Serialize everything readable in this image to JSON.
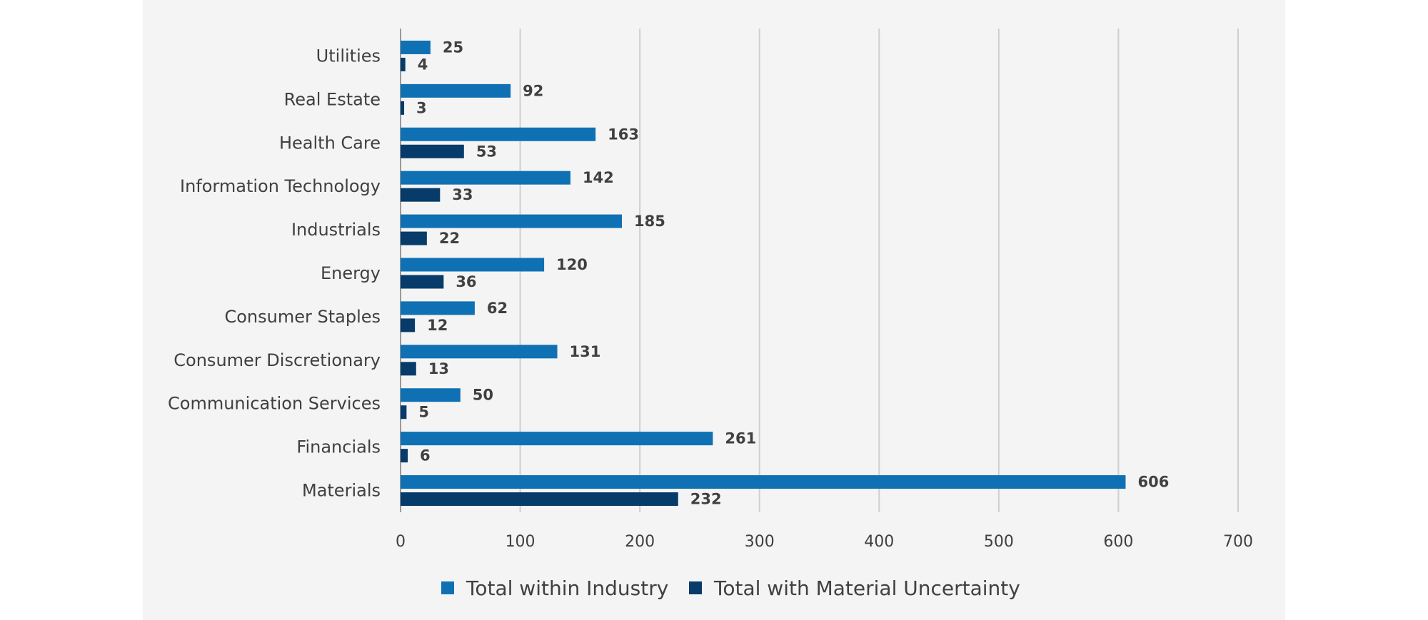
{
  "chart_data": {
    "type": "bar",
    "orientation": "horizontal",
    "categories": [
      "Utilities",
      "Real Estate",
      "Health Care",
      "Information Technology",
      "Industrials",
      "Energy",
      "Consumer Staples",
      "Consumer Discretionary",
      "Communication Services",
      "Financials",
      "Materials"
    ],
    "series": [
      {
        "name": "Total within Industry",
        "color": "#0f71b3",
        "values": [
          25,
          92,
          163,
          142,
          185,
          120,
          62,
          131,
          50,
          261,
          606
        ]
      },
      {
        "name": "Total with Material Uncertainty",
        "color": "#063b6a",
        "values": [
          4,
          3,
          53,
          33,
          22,
          36,
          12,
          13,
          5,
          6,
          232
        ]
      }
    ],
    "xlim": [
      0,
      700
    ],
    "xticks": [
      "0",
      "100",
      "200",
      "300",
      "400",
      "500",
      "600",
      "700"
    ],
    "grid": "vertical",
    "legend": "bottom",
    "title": "",
    "xlabel": "",
    "ylabel": ""
  }
}
